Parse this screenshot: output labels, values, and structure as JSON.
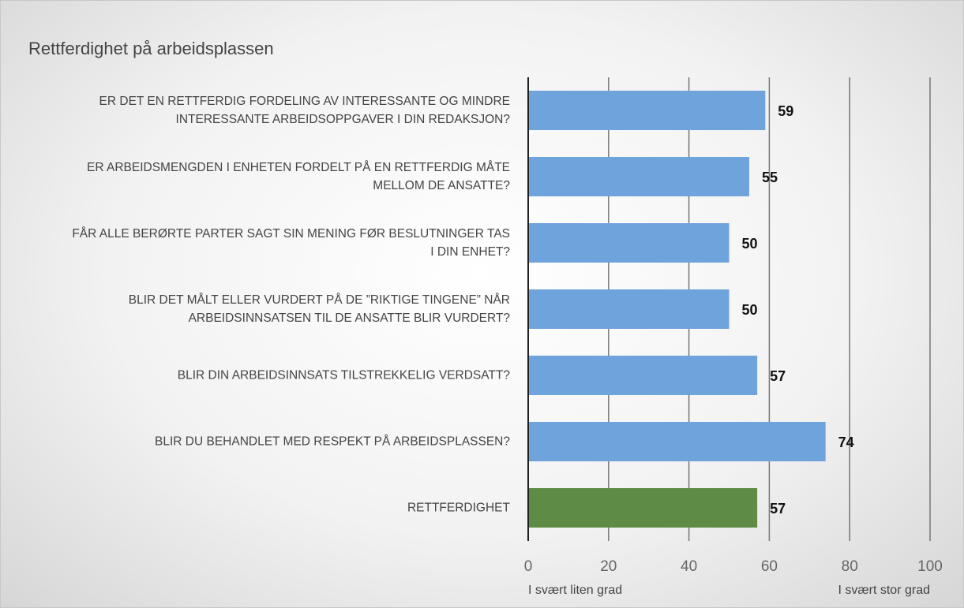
{
  "chart_data": {
    "type": "barh",
    "title": "Rettferdighet på arbeidsplassen",
    "categories": [
      "ER DET EN RETTFERDIG FORDELING AV INTERESSANTE OG MINDRE INTERESSANTE ARBEIDSOPPGAVER I DIN REDAKSJON?",
      "ER ARBEIDSMENGDEN I ENHETEN FORDELT PÅ EN RETTFERDIG MÅTE MELLOM DE ANSATTE?",
      "FÅR ALLE BERØRTE PARTER SAGT SIN MENING FØR BESLUTNINGER TAS I DIN ENHET?",
      "BLIR DET MÅLT ELLER VURDERT PÅ DE ”RIKTIGE TINGENE” NÅR ARBEIDSINNSATSEN TIL DE ANSATTE BLIR VURDERT?",
      "BLIR DIN ARBEIDSINNSATS TILSTREKKELIG VERDSATT?",
      "BLIR DU BEHANDLET MED RESPEKT PÅ ARBEIDSPLASSEN?",
      "RETTFERDIGHET"
    ],
    "values": [
      59,
      55,
      50,
      50,
      57,
      74,
      57
    ],
    "colors": [
      "#6fa3dc",
      "#6fa3dc",
      "#6fa3dc",
      "#6fa3dc",
      "#6fa3dc",
      "#6fa3dc",
      "#5e8c46"
    ],
    "xlim": [
      0,
      100
    ],
    "xticks": [
      0,
      20,
      40,
      60,
      80,
      100
    ],
    "grid": true,
    "x_low_label": "I svært liten grad",
    "x_high_label": "I svært stor grad"
  }
}
